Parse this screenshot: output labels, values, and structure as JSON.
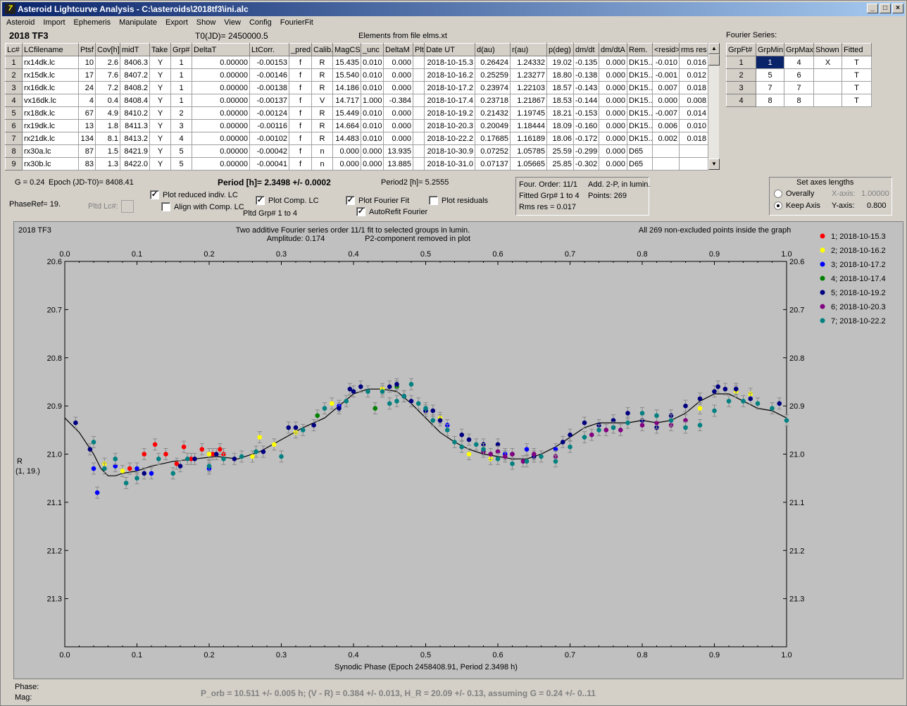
{
  "window": {
    "title": "Asteroid Lightcurve Analysis - C:\\asteroids\\2018tf3\\ini.alc"
  },
  "menu": [
    "Asteroid",
    "Import",
    "Ephemeris",
    "Manipulate",
    "Export",
    "Show",
    "View",
    "Config",
    "FourierFit"
  ],
  "header": {
    "object": "2018 TF3",
    "t0": "T0(JD)= 2450000.5",
    "elements": "Elements from file elms.xt"
  },
  "lc_table": {
    "columns": [
      "Lc#",
      "LCfilename",
      "Ptsf",
      "Cov[h]",
      "midT",
      "Take",
      "Grp#",
      "DeltaT",
      "LtCorr.",
      "_pred.",
      "Calib.",
      "MagCS",
      "_unc",
      "DeltaM",
      "Plt",
      "Date UT",
      "d(au)",
      "r(au)",
      "p(deg)",
      "dm/dt",
      "dm/dtA",
      "Rem.",
      "<resid>",
      "rms res"
    ],
    "rows": [
      [
        "1",
        "rx14dk.lc",
        "10",
        "2.6",
        "8406.3",
        "Y",
        "1",
        "0.00000",
        "-0.00153",
        "f",
        "R",
        "15.435",
        "0.010",
        "0.000",
        "",
        "2018-10-15.3",
        "0.26424",
        "1.24332",
        "19.02",
        "-0.135",
        "0.000",
        "DK15...",
        "-0.010",
        "0.016"
      ],
      [
        "2",
        "rx15dk.lc",
        "17",
        "7.6",
        "8407.2",
        "Y",
        "1",
        "0.00000",
        "-0.00146",
        "f",
        "R",
        "15.540",
        "0.010",
        "0.000",
        "",
        "2018-10-16.2",
        "0.25259",
        "1.23277",
        "18.80",
        "-0.138",
        "0.000",
        "DK15...",
        "-0.001",
        "0.012"
      ],
      [
        "3",
        "rx16dk.lc",
        "24",
        "7.2",
        "8408.2",
        "Y",
        "1",
        "0.00000",
        "-0.00138",
        "f",
        "R",
        "14.186",
        "0.010",
        "0.000",
        "",
        "2018-10-17.2",
        "0.23974",
        "1.22103",
        "18.57",
        "-0.143",
        "0.000",
        "DK15...",
        "0.007",
        "0.018"
      ],
      [
        "4",
        "vx16dk.lc",
        "4",
        "0.4",
        "8408.4",
        "Y",
        "1",
        "0.00000",
        "-0.00137",
        "f",
        "V",
        "14.717",
        "1.000",
        "-0.384",
        "",
        "2018-10-17.4",
        "0.23718",
        "1.21867",
        "18.53",
        "-0.144",
        "0.000",
        "DK15...",
        "0.000",
        "0.008"
      ],
      [
        "5",
        "rx18dk.lc",
        "67",
        "4.9",
        "8410.2",
        "Y",
        "2",
        "0.00000",
        "-0.00124",
        "f",
        "R",
        "15.449",
        "0.010",
        "0.000",
        "",
        "2018-10-19.2",
        "0.21432",
        "1.19745",
        "18.21",
        "-0.153",
        "0.000",
        "DK15...",
        "-0.007",
        "0.014"
      ],
      [
        "6",
        "rx19dk.lc",
        "13",
        "1.8",
        "8411.3",
        "Y",
        "3",
        "0.00000",
        "-0.00116",
        "f",
        "R",
        "14.664",
        "0.010",
        "0.000",
        "",
        "2018-10-20.3",
        "0.20049",
        "1.18444",
        "18.09",
        "-0.160",
        "0.000",
        "DK15...",
        "0.006",
        "0.010"
      ],
      [
        "7",
        "rx21dk.lc",
        "134",
        "8.1",
        "8413.2",
        "Y",
        "4",
        "0.00000",
        "-0.00102",
        "f",
        "R",
        "14.483",
        "0.010",
        "0.000",
        "",
        "2018-10-22.2",
        "0.17685",
        "1.16189",
        "18.06",
        "-0.172",
        "0.000",
        "DK15...",
        "0.002",
        "0.018"
      ],
      [
        "8",
        "rx30a.lc",
        "87",
        "1.5",
        "8421.9",
        "Y",
        "5",
        "0.00000",
        "-0.00042",
        "f",
        "n",
        "0.000",
        "0.000",
        "13.935",
        "",
        "2018-10-30.9",
        "0.07252",
        "1.05785",
        "25.59",
        "-0.299",
        "0.000",
        "D65",
        "",
        ""
      ],
      [
        "9",
        "rx30b.lc",
        "83",
        "1.3",
        "8422.0",
        "Y",
        "5",
        "0.00000",
        "-0.00041",
        "f",
        "n",
        "0.000",
        "0.000",
        "13.885",
        "",
        "2018-10-31.0",
        "0.07137",
        "1.05665",
        "25.85",
        "-0.302",
        "0.000",
        "D65",
        "",
        ""
      ]
    ]
  },
  "fourier_series": {
    "title": "Fourier Series:",
    "columns": [
      "GrpFt#",
      "GrpMin",
      "GrpMax",
      "Shown",
      "Fitted"
    ],
    "rows": [
      [
        "1",
        "1",
        "4",
        "X",
        "T"
      ],
      [
        "2",
        "5",
        "6",
        "",
        "T"
      ],
      [
        "3",
        "7",
        "7",
        "",
        "T"
      ],
      [
        "4",
        "8",
        "8",
        "",
        "T"
      ]
    ]
  },
  "controls": {
    "g_label": "G = 0.24",
    "epoch_label": "Epoch (JD-T0)= 8408.41",
    "period_label": "Period [h]= 2.3498 +/- 0.0002",
    "period2_label": "Period2 [h]= 5.2555",
    "phaseref": "PhaseRef= 19.",
    "pltd_lc": "Pltd Lc#:",
    "plot_reduced": "Plot reduced indiv. LC",
    "align_comp": "Align with Comp. LC",
    "plot_comp": "Plot Comp. LC",
    "pltd_grp": "Pltd Grp#  1   to   4",
    "plot_fourier": "Plot Fourier Fit",
    "autorefit": "AutoRefit Fourier",
    "plot_residuals": "Plot residuals"
  },
  "fit_info": {
    "order": "Four. Order: 11/1",
    "add": "Add. 2-P, in lumin.",
    "fitted": "Fitted Grp# 1 to 4",
    "points": "Points: 269",
    "rms": "Rms res     = 0.017"
  },
  "axes_panel": {
    "title": "Set axes lengths",
    "overally": "Overally",
    "keep": "Keep Axis",
    "xaxis_label": "X-axis:",
    "xaxis_value": "1.00000",
    "yaxis_label": "Y-axis:",
    "yaxis_value": "0.800"
  },
  "plot": {
    "object": "2018 TF3",
    "line1": "Two additive Fourier series order 11/1 fit to selected groups in lumin.",
    "line2": "Amplitude: 0.174",
    "line3": "P2-component removed in plot",
    "all_points": "All 269 non-excluded points inside the graph",
    "ylabel1": "R",
    "ylabel2": "(1, 19.)",
    "xlabel": "Synodic Phase (Epoch 2458408.91, Period 2.3498 h)"
  },
  "chart_data": {
    "type": "scatter",
    "xlabel": "Synodic Phase (Epoch 2458408.91, Period 2.3498 h)",
    "ylabel": "R (1, 19.)",
    "xlim": [
      0.0,
      1.0
    ],
    "ylim": [
      21.4,
      20.6
    ],
    "x_ticks": [
      "0.0",
      "0.1",
      "0.2",
      "0.3",
      "0.4",
      "0.5",
      "0.6",
      "0.7",
      "0.8",
      "0.9",
      "1.0"
    ],
    "y_ticks": [
      "20.6",
      "20.7",
      "20.8",
      "20.9",
      "21.0",
      "21.1",
      "21.2",
      "21.3"
    ],
    "legend_position": "right",
    "series": [
      {
        "name": "1; 2018-10-15.3",
        "color": "#ff0000",
        "x": [
          0.09,
          0.11,
          0.125,
          0.14,
          0.155,
          0.165,
          0.175,
          0.19,
          0.205,
          0.215,
          0.22
        ],
        "y": [
          21.03,
          21.0,
          20.98,
          21.0,
          21.02,
          20.985,
          21.01,
          20.99,
          21.0,
          20.99,
          21.0
        ]
      },
      {
        "name": "2; 2018-10-16.2",
        "color": "#ffff00",
        "x": [
          0.055,
          0.08,
          0.2,
          0.26,
          0.27,
          0.29,
          0.32,
          0.37,
          0.44,
          0.52,
          0.56,
          0.59,
          0.88,
          0.93,
          0.95
        ],
        "y": [
          21.02,
          21.035,
          21.0,
          21.005,
          20.965,
          20.98,
          20.955,
          20.895,
          20.865,
          20.925,
          21.0,
          21.01,
          20.905,
          20.87,
          20.875
        ]
      },
      {
        "name": "3; 2018-10-17.2",
        "color": "#0000ff",
        "x": [
          0.04,
          0.045,
          0.07,
          0.1,
          0.12,
          0.2,
          0.38,
          0.47,
          0.5,
          0.53,
          0.61,
          0.64,
          0.68,
          0.93
        ],
        "y": [
          21.03,
          21.08,
          21.025,
          21.03,
          21.04,
          21.03,
          20.9,
          20.88,
          20.91,
          20.94,
          21.0,
          20.99,
          20.99,
          20.865
        ]
      },
      {
        "name": "4; 2018-10-17.4",
        "color": "#008000",
        "x": [
          0.35,
          0.43,
          0.46
        ],
        "y": [
          20.92,
          20.905,
          20.86
        ]
      },
      {
        "name": "5; 2018-10-19.2",
        "color": "#000080",
        "x": [
          0.015,
          0.035,
          0.11,
          0.16,
          0.18,
          0.21,
          0.235,
          0.275,
          0.31,
          0.32,
          0.345,
          0.38,
          0.395,
          0.4,
          0.41,
          0.45,
          0.46,
          0.47,
          0.48,
          0.5,
          0.51,
          0.52,
          0.55,
          0.56,
          0.58,
          0.6,
          0.62,
          0.65,
          0.69,
          0.7,
          0.72,
          0.74,
          0.76,
          0.78,
          0.8,
          0.82,
          0.84,
          0.86,
          0.88,
          0.9,
          0.905,
          0.915,
          0.93,
          0.95,
          0.99
        ],
        "y": [
          20.935,
          20.99,
          21.04,
          21.025,
          21.01,
          21.0,
          21.01,
          20.995,
          20.945,
          20.945,
          20.94,
          20.905,
          20.865,
          20.87,
          20.86,
          20.86,
          20.855,
          20.88,
          20.89,
          20.91,
          20.91,
          20.93,
          20.96,
          20.97,
          20.98,
          20.98,
          21.0,
          21.005,
          20.975,
          20.96,
          20.935,
          20.94,
          20.93,
          20.915,
          20.93,
          20.945,
          20.92,
          20.9,
          20.885,
          20.87,
          20.86,
          20.865,
          20.865,
          20.885,
          20.895
        ]
      },
      {
        "name": "6; 2018-10-20.3",
        "color": "#800080",
        "x": [
          0.58,
          0.59,
          0.6,
          0.61,
          0.62,
          0.635,
          0.65,
          0.68,
          0.73,
          0.75,
          0.77,
          0.8,
          0.82,
          0.84,
          0.86
        ],
        "y": [
          20.995,
          21.0,
          20.995,
          21.005,
          21.0,
          21.015,
          21.0,
          21.005,
          20.96,
          20.95,
          20.95,
          20.94,
          20.935,
          20.94,
          20.93
        ]
      },
      {
        "name": "7; 2018-10-22.2",
        "color": "#008080",
        "x": [
          0.04,
          0.055,
          0.07,
          0.085,
          0.1,
          0.13,
          0.15,
          0.17,
          0.2,
          0.22,
          0.245,
          0.265,
          0.3,
          0.33,
          0.36,
          0.39,
          0.42,
          0.44,
          0.45,
          0.46,
          0.47,
          0.48,
          0.49,
          0.5,
          0.51,
          0.53,
          0.54,
          0.55,
          0.57,
          0.58,
          0.6,
          0.62,
          0.64,
          0.66,
          0.68,
          0.7,
          0.72,
          0.74,
          0.76,
          0.78,
          0.8,
          0.82,
          0.84,
          0.86,
          0.88,
          0.9,
          0.92,
          0.94,
          0.96,
          0.98,
          1.0
        ],
        "y": [
          20.975,
          21.03,
          21.01,
          21.06,
          21.05,
          21.01,
          21.04,
          21.01,
          21.025,
          21.01,
          21.005,
          20.995,
          21.005,
          20.95,
          20.905,
          20.89,
          20.87,
          20.87,
          20.895,
          20.89,
          20.88,
          20.855,
          20.895,
          20.905,
          20.93,
          20.95,
          20.975,
          20.985,
          20.98,
          20.99,
          21.01,
          21.02,
          21.015,
          21.005,
          21.015,
          20.985,
          20.965,
          20.95,
          20.945,
          20.935,
          20.915,
          20.92,
          20.93,
          20.945,
          20.94,
          20.91,
          20.89,
          20.89,
          20.895,
          20.905,
          20.93
        ]
      }
    ],
    "fit_curve": {
      "x": [
        0.0,
        0.02,
        0.04,
        0.05,
        0.06,
        0.07,
        0.08,
        0.1,
        0.12,
        0.15,
        0.18,
        0.21,
        0.24,
        0.27,
        0.3,
        0.33,
        0.36,
        0.38,
        0.4,
        0.42,
        0.44,
        0.46,
        0.48,
        0.5,
        0.52,
        0.54,
        0.56,
        0.58,
        0.6,
        0.62,
        0.64,
        0.66,
        0.68,
        0.7,
        0.72,
        0.74,
        0.76,
        0.78,
        0.8,
        0.82,
        0.84,
        0.86,
        0.88,
        0.9,
        0.92,
        0.94,
        0.96,
        0.98,
        1.0
      ],
      "y": [
        20.925,
        20.955,
        21.0,
        21.03,
        21.045,
        21.045,
        21.04,
        21.035,
        21.025,
        21.015,
        21.01,
        21.005,
        21.01,
        20.995,
        20.97,
        20.945,
        20.925,
        20.9,
        20.875,
        20.865,
        20.865,
        20.87,
        20.895,
        20.925,
        20.955,
        20.975,
        20.99,
        21.0,
        21.005,
        21.01,
        21.01,
        21.0,
        20.985,
        20.965,
        20.945,
        20.935,
        20.935,
        20.935,
        20.93,
        20.935,
        20.93,
        20.915,
        20.89,
        20.875,
        20.875,
        20.89,
        20.905,
        20.91,
        20.925
      ]
    }
  },
  "status": {
    "phase": "Phase:",
    "mag": "Mag:",
    "result": "P_orb = 10.511 +/- 0.005 h; (V - R) = 0.384 +/- 0.013, H_R = 20.09 +/- 0.13, assuming G = 0.24 +/- 0..11"
  }
}
